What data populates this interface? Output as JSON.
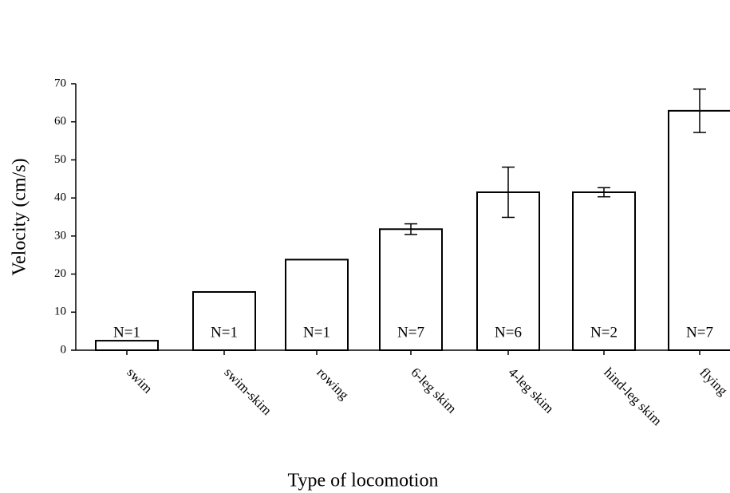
{
  "chart_data": {
    "type": "bar",
    "x_label": "Type of locomotion",
    "y_label": "Velocity (cm/s)",
    "categories": [
      "swim",
      "swim-skim",
      "rowing",
      "6-leg skim",
      "4-leg skim",
      "hind-leg skim",
      "flying"
    ],
    "values": [
      2.5,
      15.3,
      23.8,
      31.8,
      41.5,
      41.5,
      62.9
    ],
    "errors": [
      null,
      null,
      null,
      1.4,
      6.6,
      1.2,
      5.7
    ],
    "annotations": [
      "N=1",
      "N=1",
      "N=1",
      "N=7",
      "N=6",
      "N=2",
      "N=7"
    ],
    "color": "#ffffff",
    "ylim": [
      0,
      70
    ],
    "yticks": [
      0,
      10,
      20,
      30,
      40,
      50,
      60,
      70
    ]
  }
}
